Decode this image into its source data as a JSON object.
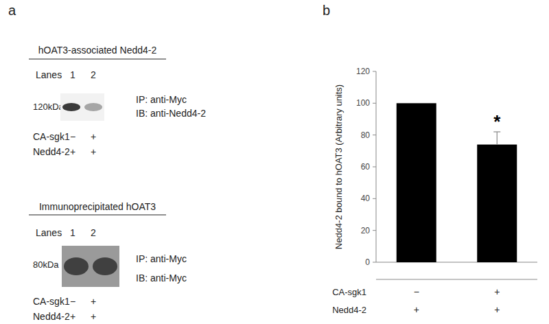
{
  "panel_labels": [
    "a",
    "b"
  ],
  "blots": [
    {
      "title": "hOAT3-associated Nedd4-2",
      "lanes_label": "Lanes",
      "lanes": [
        "1",
        "2"
      ],
      "size_marker": "120kDa",
      "ip": "IP: anti-Myc",
      "ib": "IB: anti-Nedd4-2",
      "conditions": [
        {
          "label": "CA-sgk1",
          "values": [
            "−",
            "+"
          ]
        },
        {
          "label": "Nedd4-2",
          "values": [
            "+",
            "+"
          ]
        }
      ]
    },
    {
      "title": "Immunoprecipitated hOAT3",
      "lanes_label": "Lanes",
      "lanes": [
        "1",
        "2"
      ],
      "size_marker": "80kDa",
      "ip": "IP: anti-Myc",
      "ib": "IB: anti-Myc",
      "conditions": [
        {
          "label": "CA-sgk1",
          "values": [
            "−",
            "+"
          ]
        },
        {
          "label": "Nedd4-2",
          "values": [
            "+",
            "+"
          ]
        }
      ]
    }
  ],
  "chart_data": {
    "type": "bar",
    "y_label": "Nedd4-2 bound to hOAT3 (Arbitrary units)",
    "categories": [
      null,
      null
    ],
    "values": [
      100,
      74
    ],
    "errors": [
      null,
      8
    ],
    "color": "#000000",
    "ylim": [
      0,
      120
    ],
    "yticks": [
      0,
      20,
      40,
      60,
      80,
      100,
      120
    ],
    "grid": false,
    "annotations": [
      {
        "text": "*",
        "index": 1
      }
    ],
    "conditions": [
      {
        "label": "CA-sgk1",
        "values": [
          "−",
          "+"
        ]
      },
      {
        "label": "Nedd4-2",
        "values": [
          "+",
          "+"
        ]
      }
    ]
  }
}
